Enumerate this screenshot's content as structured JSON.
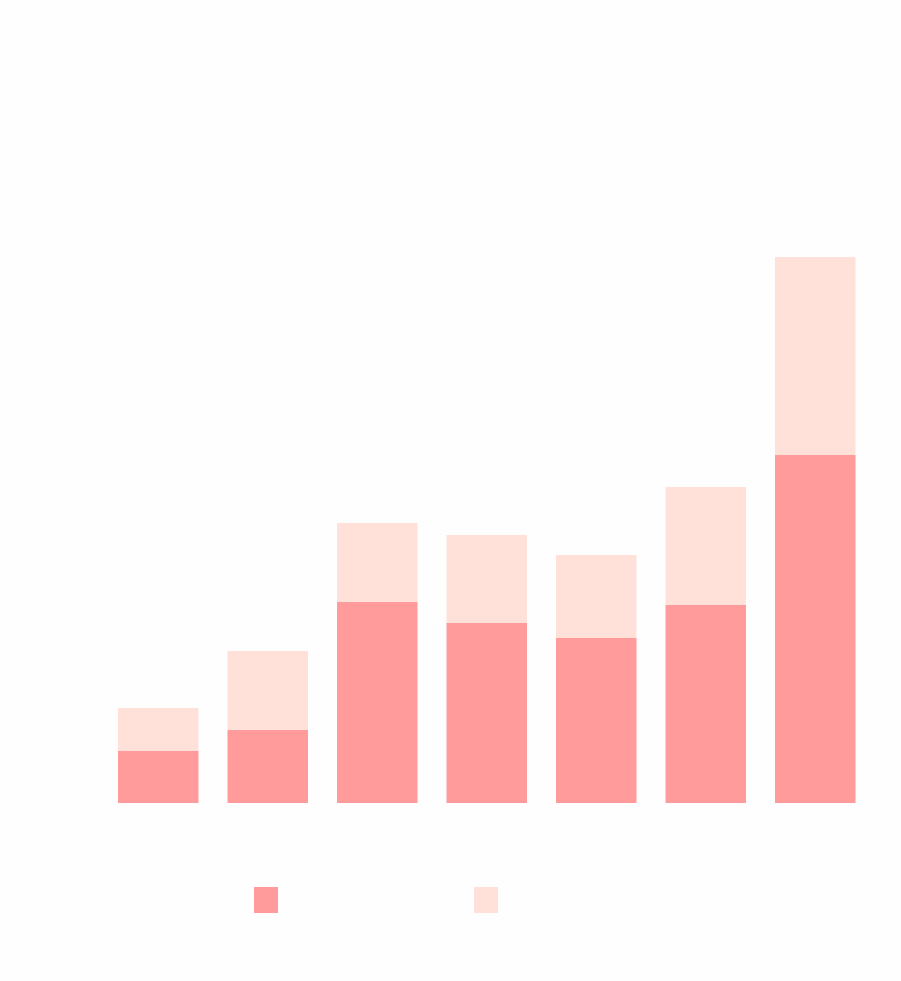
{
  "chart_data": {
    "type": "bar",
    "stacked": true,
    "title": "",
    "xlabel": "",
    "ylabel": "",
    "categories": [
      "",
      "",
      "",
      "",
      "",
      "",
      ""
    ],
    "series": [
      {
        "values": [
          5.2,
          7.3,
          20.1,
          18.0,
          16.5,
          19.8,
          34.8
        ],
        "color": "#ff9b9a"
      },
      {
        "values": [
          4.3,
          7.9,
          7.9,
          8.8,
          8.3,
          11.8,
          19.8
        ],
        "color": "#ffe1d9"
      }
    ],
    "ylim": [
      0,
      80
    ],
    "grid": false,
    "legend_position": "bottom"
  }
}
